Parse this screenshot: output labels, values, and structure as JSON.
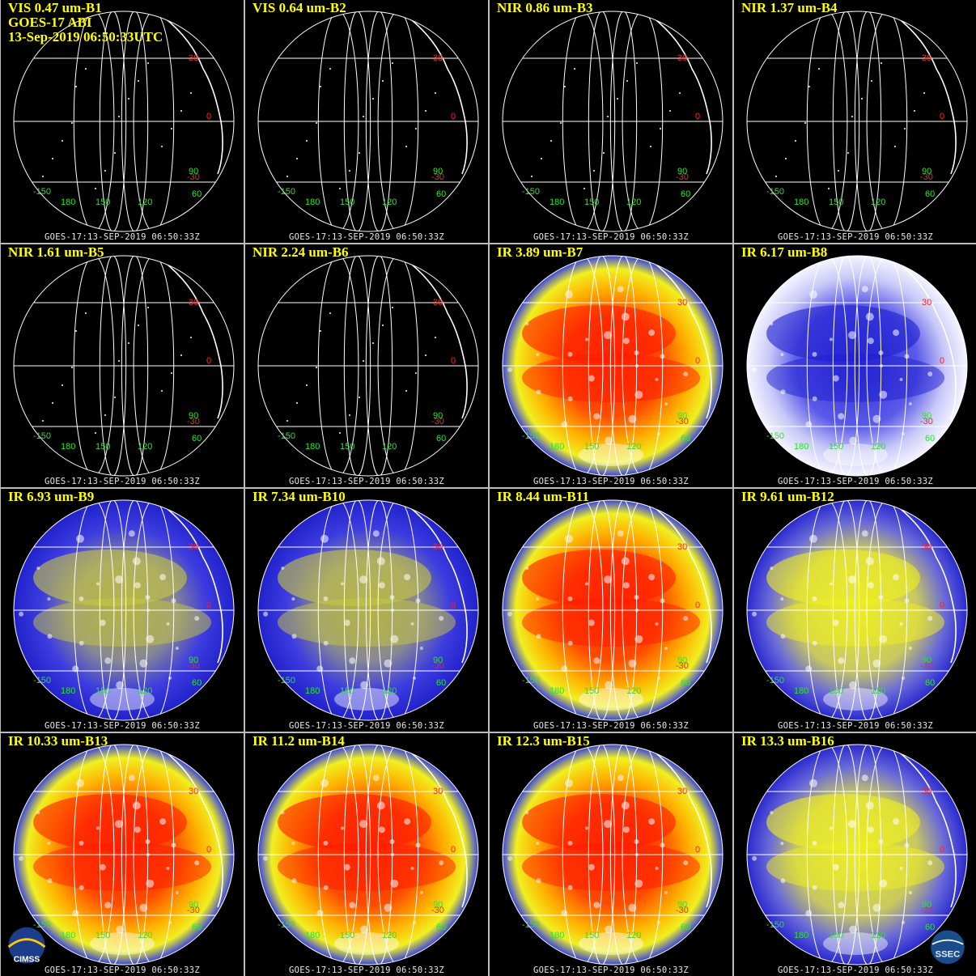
{
  "header_lines": [
    "GOES-17 ABI",
    "13-Sep-2019 06:50:33UTC"
  ],
  "timestamp": "GOES-17:13-SEP-2019 06:50:33Z",
  "lat_labels": [
    "30",
    "0",
    "-30"
  ],
  "lon_labels": [
    "-150",
    "180",
    "150",
    "120",
    "60",
    "90"
  ],
  "logos": {
    "left": "CIMSS",
    "right": "SSEC"
  },
  "panels": [
    {
      "label": "VIS 0.47 um-B1",
      "style": "vis"
    },
    {
      "label": "VIS 0.64 um-B2",
      "style": "vis"
    },
    {
      "label": "NIR 0.86 um-B3",
      "style": "vis"
    },
    {
      "label": "NIR 1.37 um-B4",
      "style": "vis"
    },
    {
      "label": "NIR 1.61 um-B5",
      "style": "vis"
    },
    {
      "label": "NIR 2.24 um-B6",
      "style": "vis"
    },
    {
      "label": "IR 3.89 um-B7",
      "style": "warm"
    },
    {
      "label": "IR 6.17 um-B8",
      "style": "wv"
    },
    {
      "label": "IR 6.93 um-B9",
      "style": "wv2"
    },
    {
      "label": "IR 7.34 um-B10",
      "style": "wv2"
    },
    {
      "label": "IR 8.44 um-B11",
      "style": "warm"
    },
    {
      "label": "IR 9.61 um-B12",
      "style": "yellowblue"
    },
    {
      "label": "IR 10.33 um-B13",
      "style": "warm"
    },
    {
      "label": "IR 11.2 um-B14",
      "style": "warm"
    },
    {
      "label": "IR 12.3 um-B15",
      "style": "warm"
    },
    {
      "label": "IR 13.3 um-B16",
      "style": "yellowblue"
    }
  ],
  "colors": {
    "title": "#ffff00",
    "lat_label": "#ff2020",
    "lon_label": "#30e030",
    "separator": "#bdbdbd"
  }
}
